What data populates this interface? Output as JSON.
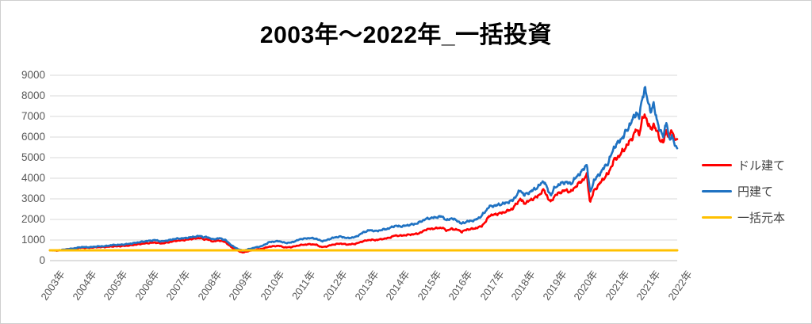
{
  "chart": {
    "title": "2003年～2022年_一括投資",
    "colors": {
      "dollar_series": "#FF0000",
      "yen_series": "#1F72C2",
      "principal_series": "#FFC000",
      "gridline": "#D9D9D9",
      "axis_line": "#BFBFBF",
      "tick_text": "#595959",
      "legend_text": "#404040",
      "title_text": "#000000"
    }
  },
  "chart_data": {
    "type": "line",
    "title": "2003年～2022年_一括投資",
    "x_unit": "decimal_year",
    "x_range_years": [
      2003,
      2023
    ],
    "x_categories": [
      "2003年",
      "2004年",
      "2005年",
      "2006年",
      "2007年",
      "2008年",
      "2009年",
      "2010年",
      "2011年",
      "2012年",
      "2013年",
      "2014年",
      "2015年",
      "2016年",
      "2017年",
      "2018年",
      "2019年",
      "2020年",
      "2021年",
      "2021年",
      "2022年"
    ],
    "ylim": [
      0,
      9000
    ],
    "y_tick_step": 1000,
    "y_tick_labels": [
      "0",
      "1000",
      "2000",
      "3000",
      "4000",
      "5000",
      "6000",
      "7000",
      "8000",
      "9000"
    ],
    "grid": true,
    "legend_position": "right",
    "series": [
      {
        "name": "ドル建て",
        "color": "#FF0000",
        "jitter": 1,
        "points": [
          [
            2003.0,
            500
          ],
          [
            2003.25,
            485
          ],
          [
            2003.5,
            540
          ],
          [
            2003.75,
            580
          ],
          [
            2004.0,
            630
          ],
          [
            2004.25,
            625
          ],
          [
            2004.5,
            655
          ],
          [
            2004.75,
            660
          ],
          [
            2005.0,
            690
          ],
          [
            2005.25,
            700
          ],
          [
            2005.5,
            730
          ],
          [
            2005.75,
            780
          ],
          [
            2006.0,
            830
          ],
          [
            2006.35,
            880
          ],
          [
            2006.55,
            830
          ],
          [
            2006.75,
            880
          ],
          [
            2007.0,
            960
          ],
          [
            2007.3,
            1000
          ],
          [
            2007.55,
            1060
          ],
          [
            2007.8,
            1100
          ],
          [
            2007.9,
            1030
          ],
          [
            2008.0,
            1040
          ],
          [
            2008.2,
            930
          ],
          [
            2008.4,
            980
          ],
          [
            2008.6,
            900
          ],
          [
            2008.72,
            730
          ],
          [
            2008.85,
            580
          ],
          [
            2009.0,
            470
          ],
          [
            2009.15,
            395
          ],
          [
            2009.35,
            470
          ],
          [
            2009.55,
            530
          ],
          [
            2009.75,
            570
          ],
          [
            2010.0,
            680
          ],
          [
            2010.3,
            720
          ],
          [
            2010.5,
            640
          ],
          [
            2010.7,
            660
          ],
          [
            2011.0,
            760
          ],
          [
            2011.3,
            800
          ],
          [
            2011.5,
            770
          ],
          [
            2011.65,
            660
          ],
          [
            2011.8,
            680
          ],
          [
            2012.0,
            770
          ],
          [
            2012.25,
            830
          ],
          [
            2012.5,
            780
          ],
          [
            2012.75,
            820
          ],
          [
            2013.0,
            950
          ],
          [
            2013.2,
            1010
          ],
          [
            2013.4,
            1000
          ],
          [
            2013.6,
            1050
          ],
          [
            2013.8,
            1100
          ],
          [
            2014.0,
            1220
          ],
          [
            2014.2,
            1210
          ],
          [
            2014.45,
            1260
          ],
          [
            2014.7,
            1300
          ],
          [
            2014.85,
            1380
          ],
          [
            2015.0,
            1520
          ],
          [
            2015.25,
            1560
          ],
          [
            2015.5,
            1600
          ],
          [
            2015.65,
            1460
          ],
          [
            2015.8,
            1540
          ],
          [
            2016.0,
            1500
          ],
          [
            2016.12,
            1400
          ],
          [
            2016.3,
            1510
          ],
          [
            2016.55,
            1560
          ],
          [
            2016.75,
            1660
          ],
          [
            2016.9,
            1900
          ],
          [
            2017.0,
            2180
          ],
          [
            2017.25,
            2260
          ],
          [
            2017.5,
            2360
          ],
          [
            2017.75,
            2520
          ],
          [
            2018.0,
            3000
          ],
          [
            2018.12,
            2780
          ],
          [
            2018.3,
            2920
          ],
          [
            2018.55,
            3120
          ],
          [
            2018.75,
            3440
          ],
          [
            2018.9,
            2980
          ],
          [
            2018.97,
            2840
          ],
          [
            2019.1,
            3160
          ],
          [
            2019.3,
            3340
          ],
          [
            2019.45,
            3420
          ],
          [
            2019.6,
            3330
          ],
          [
            2019.8,
            3660
          ],
          [
            2020.0,
            3930
          ],
          [
            2020.12,
            4140
          ],
          [
            2020.22,
            2820
          ],
          [
            2020.35,
            3400
          ],
          [
            2020.5,
            3680
          ],
          [
            2020.65,
            3980
          ],
          [
            2020.8,
            4220
          ],
          [
            2020.9,
            4580
          ],
          [
            2021.0,
            4900
          ],
          [
            2021.15,
            5080
          ],
          [
            2021.3,
            5380
          ],
          [
            2021.45,
            5700
          ],
          [
            2021.6,
            6060
          ],
          [
            2021.7,
            6380
          ],
          [
            2021.78,
            6120
          ],
          [
            2021.88,
            6780
          ],
          [
            2021.96,
            7080
          ],
          [
            2022.05,
            6760
          ],
          [
            2022.15,
            6340
          ],
          [
            2022.25,
            6620
          ],
          [
            2022.35,
            6280
          ],
          [
            2022.45,
            5880
          ],
          [
            2022.55,
            5720
          ],
          [
            2022.66,
            6320
          ],
          [
            2022.75,
            6020
          ],
          [
            2022.83,
            6340
          ],
          [
            2022.9,
            5940
          ],
          [
            2023.0,
            5900
          ]
        ]
      },
      {
        "name": "円建て",
        "color": "#1F72C2",
        "jitter": 1,
        "points": [
          [
            2003.0,
            500
          ],
          [
            2003.25,
            490
          ],
          [
            2003.5,
            545
          ],
          [
            2003.75,
            590
          ],
          [
            2004.0,
            660
          ],
          [
            2004.25,
            650
          ],
          [
            2004.5,
            690
          ],
          [
            2004.75,
            700
          ],
          [
            2005.0,
            760
          ],
          [
            2005.25,
            770
          ],
          [
            2005.5,
            810
          ],
          [
            2005.75,
            870
          ],
          [
            2006.0,
            930
          ],
          [
            2006.35,
            1000
          ],
          [
            2006.55,
            930
          ],
          [
            2006.75,
            980
          ],
          [
            2007.0,
            1060
          ],
          [
            2007.3,
            1090
          ],
          [
            2007.55,
            1150
          ],
          [
            2007.8,
            1200
          ],
          [
            2007.9,
            1130
          ],
          [
            2008.0,
            1150
          ],
          [
            2008.2,
            1030
          ],
          [
            2008.4,
            1090
          ],
          [
            2008.6,
            1000
          ],
          [
            2008.72,
            830
          ],
          [
            2008.85,
            680
          ],
          [
            2009.0,
            560
          ],
          [
            2009.15,
            480
          ],
          [
            2009.35,
            560
          ],
          [
            2009.55,
            640
          ],
          [
            2009.75,
            700
          ],
          [
            2010.0,
            900
          ],
          [
            2010.3,
            950
          ],
          [
            2010.5,
            860
          ],
          [
            2010.7,
            880
          ],
          [
            2011.0,
            1050
          ],
          [
            2011.3,
            1100
          ],
          [
            2011.5,
            1060
          ],
          [
            2011.65,
            950
          ],
          [
            2011.8,
            980
          ],
          [
            2012.0,
            1100
          ],
          [
            2012.25,
            1170
          ],
          [
            2012.5,
            1090
          ],
          [
            2012.75,
            1150
          ],
          [
            2013.0,
            1380
          ],
          [
            2013.2,
            1480
          ],
          [
            2013.4,
            1430
          ],
          [
            2013.6,
            1500
          ],
          [
            2013.8,
            1560
          ],
          [
            2014.0,
            1690
          ],
          [
            2014.2,
            1660
          ],
          [
            2014.45,
            1730
          ],
          [
            2014.7,
            1800
          ],
          [
            2014.85,
            1920
          ],
          [
            2015.0,
            2030
          ],
          [
            2015.25,
            2090
          ],
          [
            2015.5,
            2150
          ],
          [
            2015.65,
            1950
          ],
          [
            2015.8,
            2060
          ],
          [
            2016.0,
            1930
          ],
          [
            2016.12,
            1790
          ],
          [
            2016.3,
            1900
          ],
          [
            2016.55,
            1960
          ],
          [
            2016.75,
            2150
          ],
          [
            2016.9,
            2420
          ],
          [
            2017.0,
            2620
          ],
          [
            2017.25,
            2690
          ],
          [
            2017.5,
            2780
          ],
          [
            2017.75,
            2920
          ],
          [
            2018.0,
            3420
          ],
          [
            2018.12,
            3180
          ],
          [
            2018.3,
            3330
          ],
          [
            2018.55,
            3560
          ],
          [
            2018.75,
            3880
          ],
          [
            2018.9,
            3350
          ],
          [
            2018.97,
            3180
          ],
          [
            2019.1,
            3550
          ],
          [
            2019.3,
            3750
          ],
          [
            2019.45,
            3820
          ],
          [
            2019.6,
            3720
          ],
          [
            2019.8,
            4080
          ],
          [
            2020.0,
            4400
          ],
          [
            2020.12,
            4700
          ],
          [
            2020.22,
            3280
          ],
          [
            2020.35,
            3900
          ],
          [
            2020.5,
            4150
          ],
          [
            2020.65,
            4480
          ],
          [
            2020.8,
            4750
          ],
          [
            2020.9,
            5150
          ],
          [
            2021.0,
            5540
          ],
          [
            2021.15,
            5780
          ],
          [
            2021.3,
            6080
          ],
          [
            2021.45,
            6480
          ],
          [
            2021.6,
            6900
          ],
          [
            2021.7,
            7220
          ],
          [
            2021.78,
            6880
          ],
          [
            2021.88,
            7850
          ],
          [
            2021.96,
            8380
          ],
          [
            2022.05,
            7820
          ],
          [
            2022.15,
            7280
          ],
          [
            2022.25,
            7540
          ],
          [
            2022.35,
            6880
          ],
          [
            2022.45,
            6280
          ],
          [
            2022.55,
            6060
          ],
          [
            2022.66,
            6740
          ],
          [
            2022.75,
            5820
          ],
          [
            2022.83,
            6130
          ],
          [
            2022.9,
            5680
          ],
          [
            2023.0,
            5450
          ]
        ]
      },
      {
        "name": "一括元本",
        "color": "#FFC000",
        "jitter": 0,
        "points": [
          [
            2003.0,
            500
          ],
          [
            2023.0,
            500
          ]
        ]
      }
    ]
  }
}
